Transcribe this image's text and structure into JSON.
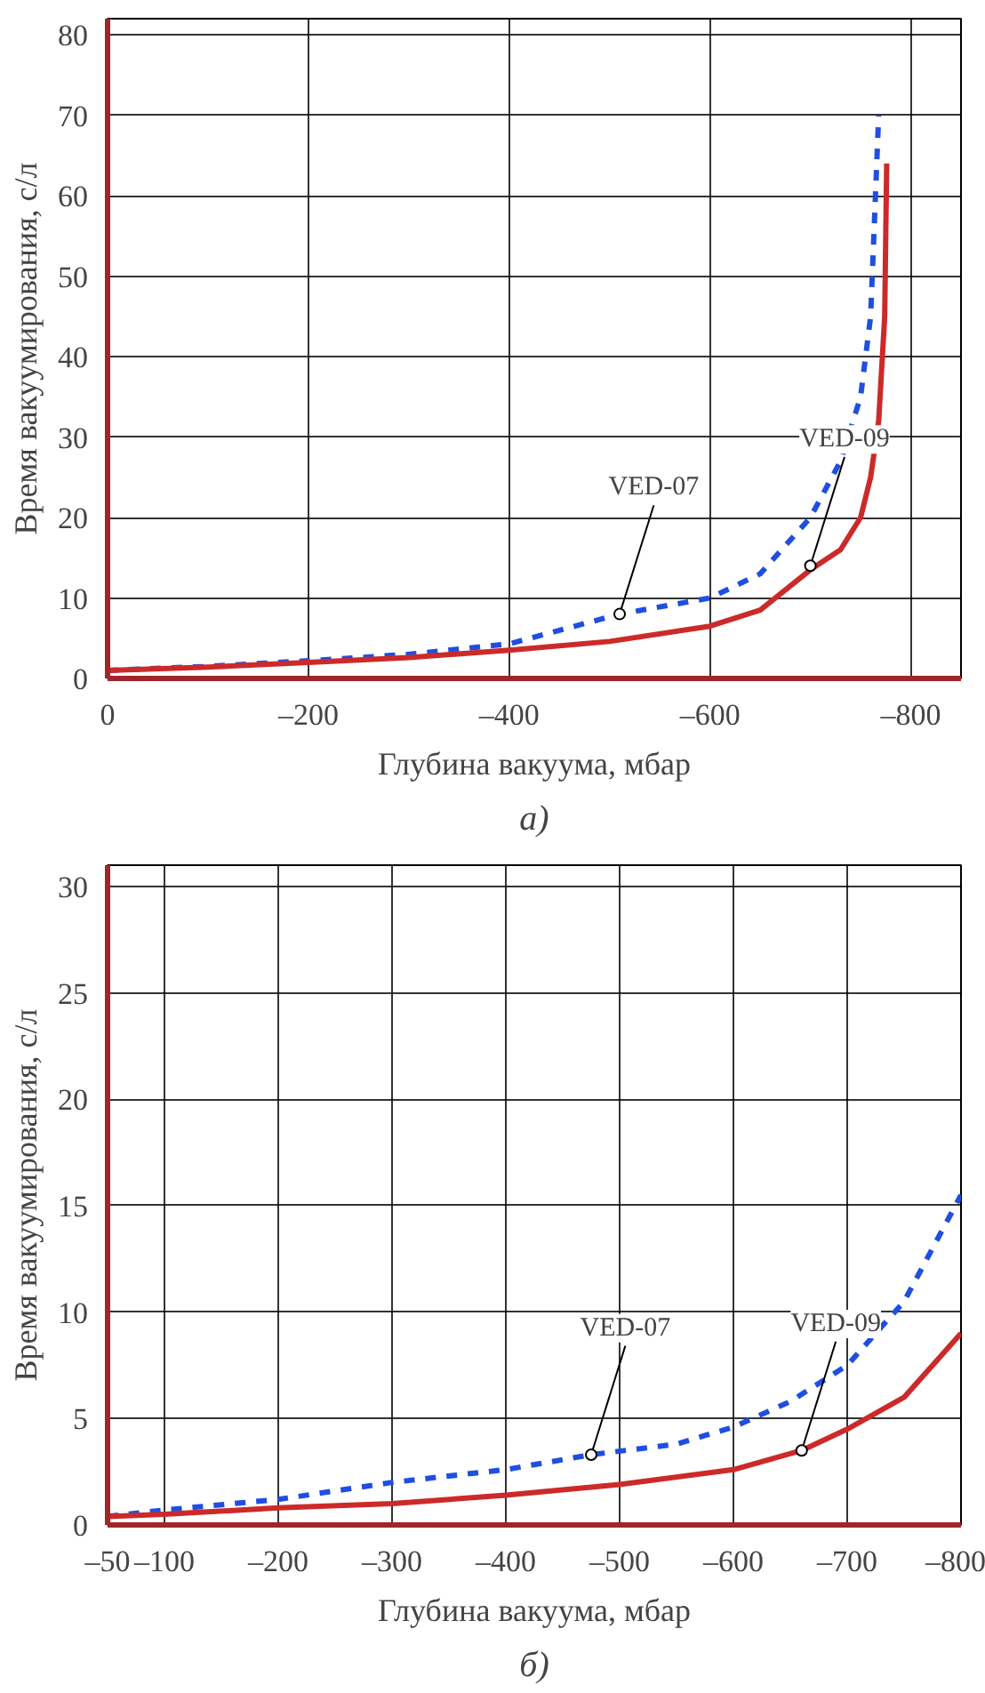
{
  "chart_data": [
    {
      "type": "line",
      "title": "а)",
      "xlabel": "Глубина вакуума, мбар",
      "ylabel": "Время вакуумирования, с/л",
      "xlim": [
        0,
        -850
      ],
      "ylim": [
        0,
        82
      ],
      "xticks": [
        0,
        {
          "value": -200,
          "label": "–200"
        },
        {
          "value": -400,
          "label": "–400"
        },
        {
          "value": -600,
          "label": "–600"
        },
        {
          "value": -800,
          "label": "–800"
        }
      ],
      "yticks": [
        0,
        10,
        20,
        30,
        40,
        50,
        60,
        70,
        80
      ],
      "grid": true,
      "series": [
        {
          "color": "#1f4fe0",
          "line_style": "dashed",
          "x": [
            0,
            -100,
            -200,
            -300,
            -400,
            -510,
            -600,
            -650,
            -700,
            -730,
            -750,
            -760,
            -768
          ],
          "values": [
            1,
            1.5,
            2.2,
            3,
            4.3,
            8,
            10,
            13,
            20,
            27,
            35,
            45,
            70
          ]
        },
        {
          "color": "#cc2a2a",
          "line_style": "solid",
          "x": [
            0,
            -100,
            -200,
            -300,
            -400,
            -500,
            -600,
            -650,
            -700,
            -730,
            -750,
            -760,
            -768,
            -774,
            -776
          ],
          "values": [
            1,
            1.4,
            2,
            2.6,
            3.5,
            4.6,
            6.5,
            8.5,
            13.5,
            16,
            20,
            25,
            32,
            45,
            64
          ]
        }
      ],
      "annotations": [
        {
          "text": "VED-07",
          "x": -510,
          "y": 8
        },
        {
          "text": "VED-09",
          "x": -700,
          "y": 14
        }
      ]
    },
    {
      "type": "line",
      "title": "б)",
      "xlabel": "Глубина вакуума, мбар",
      "ylabel": "Время вакуумирования, с/л",
      "xlim": [
        -50,
        -800
      ],
      "ylim": [
        0,
        31
      ],
      "xticks": [
        {
          "value": -50,
          "label": "–50"
        },
        {
          "value": -100,
          "label": "–100"
        },
        {
          "value": -200,
          "label": "–200"
        },
        {
          "value": -300,
          "label": "–300"
        },
        {
          "value": -400,
          "label": "–400"
        },
        {
          "value": -500,
          "label": "–500"
        },
        {
          "value": -600,
          "label": "–600"
        },
        {
          "value": -700,
          "label": "–700"
        },
        {
          "value": -800,
          "label": "–800"
        }
      ],
      "yticks": [
        0,
        5,
        10,
        15,
        20,
        25,
        30
      ],
      "grid": true,
      "series": [
        {
          "color": "#1f4fe0",
          "line_style": "dashed",
          "x": [
            -50,
            -100,
            -200,
            -300,
            -400,
            -475,
            -550,
            -600,
            -650,
            -700,
            -750,
            -800
          ],
          "values": [
            0.4,
            0.7,
            1.2,
            2,
            2.6,
            3.3,
            3.8,
            4.6,
            5.8,
            7.5,
            10.5,
            15.5
          ]
        },
        {
          "color": "#cc2a2a",
          "line_style": "solid",
          "x": [
            -50,
            -100,
            -200,
            -300,
            -400,
            -500,
            -600,
            -660,
            -700,
            -750,
            -800
          ],
          "values": [
            0.4,
            0.5,
            0.8,
            1,
            1.4,
            1.9,
            2.6,
            3.5,
            4.5,
            6,
            9
          ]
        }
      ],
      "annotations": [
        {
          "text": "VED-07",
          "x": -475,
          "y": 3.3
        },
        {
          "text": "VED-09",
          "x": -660,
          "y": 3.5
        }
      ]
    }
  ]
}
